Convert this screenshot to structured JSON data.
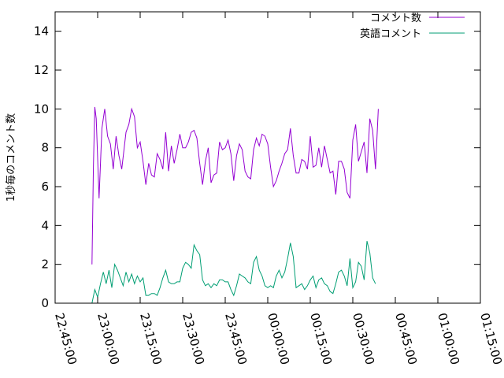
{
  "chart_data": {
    "type": "line",
    "title": "",
    "xlabel": "",
    "ylabel": "1秒毎のコメント数",
    "ylim": [
      0,
      15
    ],
    "y_ticks": [
      0,
      2,
      4,
      6,
      8,
      10,
      12,
      14
    ],
    "y_tick_labels": [
      "0",
      "2",
      "4",
      "6",
      "8",
      "10",
      "12",
      "14"
    ],
    "x_ticks": [
      "22:45:00",
      "23:00:00",
      "23:15:00",
      "23:30:00",
      "23:45:00",
      "00:00:00",
      "00:15:00",
      "00:30:00",
      "00:45:00",
      "01:00:00",
      "01:15:00"
    ],
    "xlim": [
      "22:45:00",
      "01:15:00"
    ],
    "grid": false,
    "legend_position": "top-right",
    "series": [
      {
        "name": "コメント数",
        "color": "#9400d3",
        "points": [
          [
            "22:58:00",
            2.0
          ],
          [
            "22:58:30",
            7.0
          ],
          [
            "22:59:00",
            10.1
          ],
          [
            "22:59:30",
            9.5
          ],
          [
            "23:00:30",
            5.4
          ],
          [
            "23:01:30",
            9.0
          ],
          [
            "23:02:30",
            10.0
          ],
          [
            "23:03:30",
            8.6
          ],
          [
            "23:04:30",
            8.2
          ],
          [
            "23:05:30",
            6.9
          ],
          [
            "23:06:30",
            8.6
          ],
          [
            "23:07:30",
            7.6
          ],
          [
            "23:08:30",
            6.9
          ],
          [
            "23:10:00",
            8.8
          ],
          [
            "23:11:00",
            9.2
          ],
          [
            "23:12:00",
            10.0
          ],
          [
            "23:13:00",
            9.6
          ],
          [
            "23:14:00",
            8.0
          ],
          [
            "23:15:00",
            8.3
          ],
          [
            "23:16:00",
            7.3
          ],
          [
            "23:17:00",
            6.1
          ],
          [
            "23:18:00",
            7.2
          ],
          [
            "23:19:00",
            6.6
          ],
          [
            "23:20:00",
            6.5
          ],
          [
            "23:21:00",
            7.7
          ],
          [
            "23:22:00",
            7.4
          ],
          [
            "23:23:00",
            6.9
          ],
          [
            "23:24:00",
            8.8
          ],
          [
            "23:25:00",
            6.8
          ],
          [
            "23:26:00",
            8.1
          ],
          [
            "23:27:00",
            7.2
          ],
          [
            "23:28:00",
            7.9
          ],
          [
            "23:29:00",
            8.7
          ],
          [
            "23:30:00",
            8.0
          ],
          [
            "23:31:00",
            8.0
          ],
          [
            "23:32:00",
            8.3
          ],
          [
            "23:33:00",
            8.8
          ],
          [
            "23:34:00",
            8.9
          ],
          [
            "23:35:00",
            8.5
          ],
          [
            "23:36:00",
            7.2
          ],
          [
            "23:37:00",
            6.1
          ],
          [
            "23:38:00",
            7.3
          ],
          [
            "23:39:00",
            8.0
          ],
          [
            "23:40:00",
            6.2
          ],
          [
            "23:41:00",
            6.6
          ],
          [
            "23:42:00",
            6.7
          ],
          [
            "23:43:00",
            8.3
          ],
          [
            "23:44:00",
            7.9
          ],
          [
            "23:45:00",
            8.0
          ],
          [
            "23:46:00",
            8.4
          ],
          [
            "23:47:00",
            7.7
          ],
          [
            "23:48:00",
            6.3
          ],
          [
            "23:49:00",
            7.6
          ],
          [
            "23:50:00",
            8.2
          ],
          [
            "23:51:00",
            7.9
          ],
          [
            "23:52:00",
            6.8
          ],
          [
            "23:53:00",
            6.5
          ],
          [
            "23:54:00",
            6.4
          ],
          [
            "23:55:00",
            7.9
          ],
          [
            "23:56:00",
            8.5
          ],
          [
            "23:57:00",
            8.1
          ],
          [
            "23:58:00",
            8.7
          ],
          [
            "23:59:00",
            8.6
          ],
          [
            "00:00:00",
            8.2
          ],
          [
            "00:01:00",
            7.0
          ],
          [
            "00:02:00",
            6.0
          ],
          [
            "00:03:00",
            6.3
          ],
          [
            "00:04:00",
            6.8
          ],
          [
            "00:05:00",
            7.2
          ],
          [
            "00:06:00",
            7.7
          ],
          [
            "00:07:00",
            7.9
          ],
          [
            "00:08:00",
            9.0
          ],
          [
            "00:09:00",
            7.6
          ],
          [
            "00:10:00",
            6.7
          ],
          [
            "00:11:00",
            6.7
          ],
          [
            "00:12:00",
            7.4
          ],
          [
            "00:13:00",
            7.3
          ],
          [
            "00:14:00",
            6.9
          ],
          [
            "00:15:00",
            8.6
          ],
          [
            "00:16:00",
            7.0
          ],
          [
            "00:17:00",
            7.1
          ],
          [
            "00:18:00",
            8.0
          ],
          [
            "00:19:00",
            7.0
          ],
          [
            "00:20:00",
            8.1
          ],
          [
            "00:21:00",
            7.4
          ],
          [
            "00:22:00",
            6.7
          ],
          [
            "00:23:00",
            6.8
          ],
          [
            "00:24:00",
            5.6
          ],
          [
            "00:25:00",
            7.3
          ],
          [
            "00:26:00",
            7.3
          ],
          [
            "00:27:00",
            6.9
          ],
          [
            "00:28:00",
            5.7
          ],
          [
            "00:29:00",
            5.4
          ],
          [
            "00:30:00",
            8.4
          ],
          [
            "00:31:00",
            9.2
          ],
          [
            "00:32:00",
            7.3
          ],
          [
            "00:33:00",
            7.8
          ],
          [
            "00:34:00",
            8.3
          ],
          [
            "00:35:00",
            6.7
          ],
          [
            "00:36:00",
            9.5
          ],
          [
            "00:37:00",
            8.9
          ],
          [
            "00:38:00",
            6.9
          ],
          [
            "00:39:00",
            10.0
          ]
        ]
      },
      {
        "name": "英語コメント",
        "color": "#009e73",
        "points": [
          [
            "22:58:00",
            0.0
          ],
          [
            "22:59:00",
            0.7
          ],
          [
            "23:00:00",
            0.3
          ],
          [
            "23:01:00",
            1.0
          ],
          [
            "23:02:00",
            1.6
          ],
          [
            "23:03:00",
            1.0
          ],
          [
            "23:04:00",
            1.7
          ],
          [
            "23:05:00",
            0.8
          ],
          [
            "23:06:00",
            2.0
          ],
          [
            "23:07:00",
            1.7
          ],
          [
            "23:08:00",
            1.3
          ],
          [
            "23:09:00",
            0.9
          ],
          [
            "23:10:00",
            1.6
          ],
          [
            "23:11:00",
            1.1
          ],
          [
            "23:12:00",
            1.5
          ],
          [
            "23:13:00",
            1.0
          ],
          [
            "23:14:00",
            1.4
          ],
          [
            "23:15:00",
            1.1
          ],
          [
            "23:16:00",
            1.3
          ],
          [
            "23:17:00",
            0.4
          ],
          [
            "23:18:00",
            0.4
          ],
          [
            "23:19:00",
            0.5
          ],
          [
            "23:20:00",
            0.5
          ],
          [
            "23:21:00",
            0.4
          ],
          [
            "23:22:00",
            0.8
          ],
          [
            "23:23:00",
            1.3
          ],
          [
            "23:24:00",
            1.7
          ],
          [
            "23:25:00",
            1.1
          ],
          [
            "23:26:00",
            1.0
          ],
          [
            "23:27:00",
            1.0
          ],
          [
            "23:28:00",
            1.1
          ],
          [
            "23:29:00",
            1.1
          ],
          [
            "23:30:00",
            1.8
          ],
          [
            "23:31:00",
            2.1
          ],
          [
            "23:32:00",
            2.0
          ],
          [
            "23:33:00",
            1.8
          ],
          [
            "23:34:00",
            3.0
          ],
          [
            "23:35:00",
            2.7
          ],
          [
            "23:36:00",
            2.5
          ],
          [
            "23:37:00",
            1.2
          ],
          [
            "23:38:00",
            0.9
          ],
          [
            "23:39:00",
            1.0
          ],
          [
            "23:40:00",
            0.8
          ],
          [
            "23:41:00",
            1.0
          ],
          [
            "23:42:00",
            0.9
          ],
          [
            "23:43:00",
            1.2
          ],
          [
            "23:44:00",
            1.2
          ],
          [
            "23:45:00",
            1.1
          ],
          [
            "23:46:00",
            1.1
          ],
          [
            "23:47:00",
            0.7
          ],
          [
            "23:48:00",
            0.4
          ],
          [
            "23:49:00",
            0.9
          ],
          [
            "23:50:00",
            1.5
          ],
          [
            "23:51:00",
            1.4
          ],
          [
            "23:52:00",
            1.3
          ],
          [
            "23:53:00",
            1.1
          ],
          [
            "23:54:00",
            1.0
          ],
          [
            "23:55:00",
            2.1
          ],
          [
            "23:56:00",
            2.4
          ],
          [
            "23:57:00",
            1.7
          ],
          [
            "23:58:00",
            1.4
          ],
          [
            "23:59:00",
            0.9
          ],
          [
            "00:00:00",
            0.8
          ],
          [
            "00:01:00",
            0.9
          ],
          [
            "00:02:00",
            0.8
          ],
          [
            "00:03:00",
            1.4
          ],
          [
            "00:04:00",
            1.7
          ],
          [
            "00:05:00",
            1.3
          ],
          [
            "00:06:00",
            1.6
          ],
          [
            "00:07:00",
            2.3
          ],
          [
            "00:08:00",
            3.1
          ],
          [
            "00:09:00",
            2.4
          ],
          [
            "00:10:00",
            0.8
          ],
          [
            "00:11:00",
            0.9
          ],
          [
            "00:12:00",
            1.0
          ],
          [
            "00:13:00",
            0.7
          ],
          [
            "00:14:00",
            0.9
          ],
          [
            "00:15:00",
            1.2
          ],
          [
            "00:16:00",
            1.4
          ],
          [
            "00:17:00",
            0.8
          ],
          [
            "00:18:00",
            1.2
          ],
          [
            "00:19:00",
            1.3
          ],
          [
            "00:20:00",
            1.0
          ],
          [
            "00:21:00",
            0.9
          ],
          [
            "00:22:00",
            0.6
          ],
          [
            "00:23:00",
            0.5
          ],
          [
            "00:24:00",
            1.0
          ],
          [
            "00:25:00",
            1.6
          ],
          [
            "00:26:00",
            1.7
          ],
          [
            "00:27:00",
            1.4
          ],
          [
            "00:28:00",
            0.9
          ],
          [
            "00:29:00",
            2.3
          ],
          [
            "00:30:00",
            0.8
          ],
          [
            "00:31:00",
            1.1
          ],
          [
            "00:32:00",
            2.1
          ],
          [
            "00:33:00",
            1.9
          ],
          [
            "00:34:00",
            1.2
          ],
          [
            "00:35:00",
            3.2
          ],
          [
            "00:36:00",
            2.6
          ],
          [
            "00:37:00",
            1.3
          ],
          [
            "00:38:00",
            1.0
          ]
        ]
      }
    ]
  }
}
